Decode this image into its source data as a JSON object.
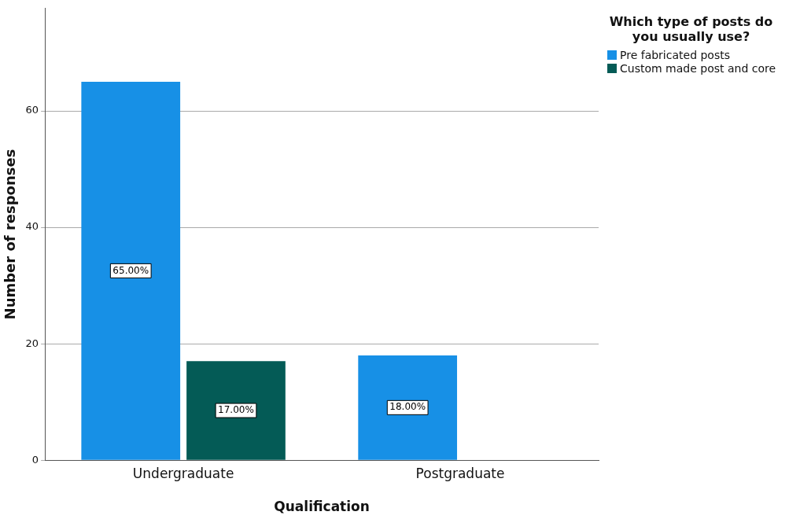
{
  "chart_data": {
    "type": "bar",
    "xlabel": "Qualification",
    "ylabel": "Number of responses",
    "legend_title": "Which type of posts do you usually use?",
    "categories": [
      "Undergraduate",
      "Postgraduate"
    ],
    "series": [
      {
        "name": "Pre fabricated posts",
        "color": "#1790e6",
        "values": [
          65,
          18
        ],
        "value_labels": [
          "65.00%",
          "18.00%"
        ]
      },
      {
        "name": "Custom made post and core",
        "color": "#045b56",
        "values": [
          17,
          null
        ],
        "value_labels": [
          "17.00%",
          null
        ]
      }
    ],
    "ylim": [
      0,
      77.6
    ],
    "yticks": [
      0,
      20,
      40,
      60
    ],
    "grid": "y",
    "legend": "top right"
  }
}
